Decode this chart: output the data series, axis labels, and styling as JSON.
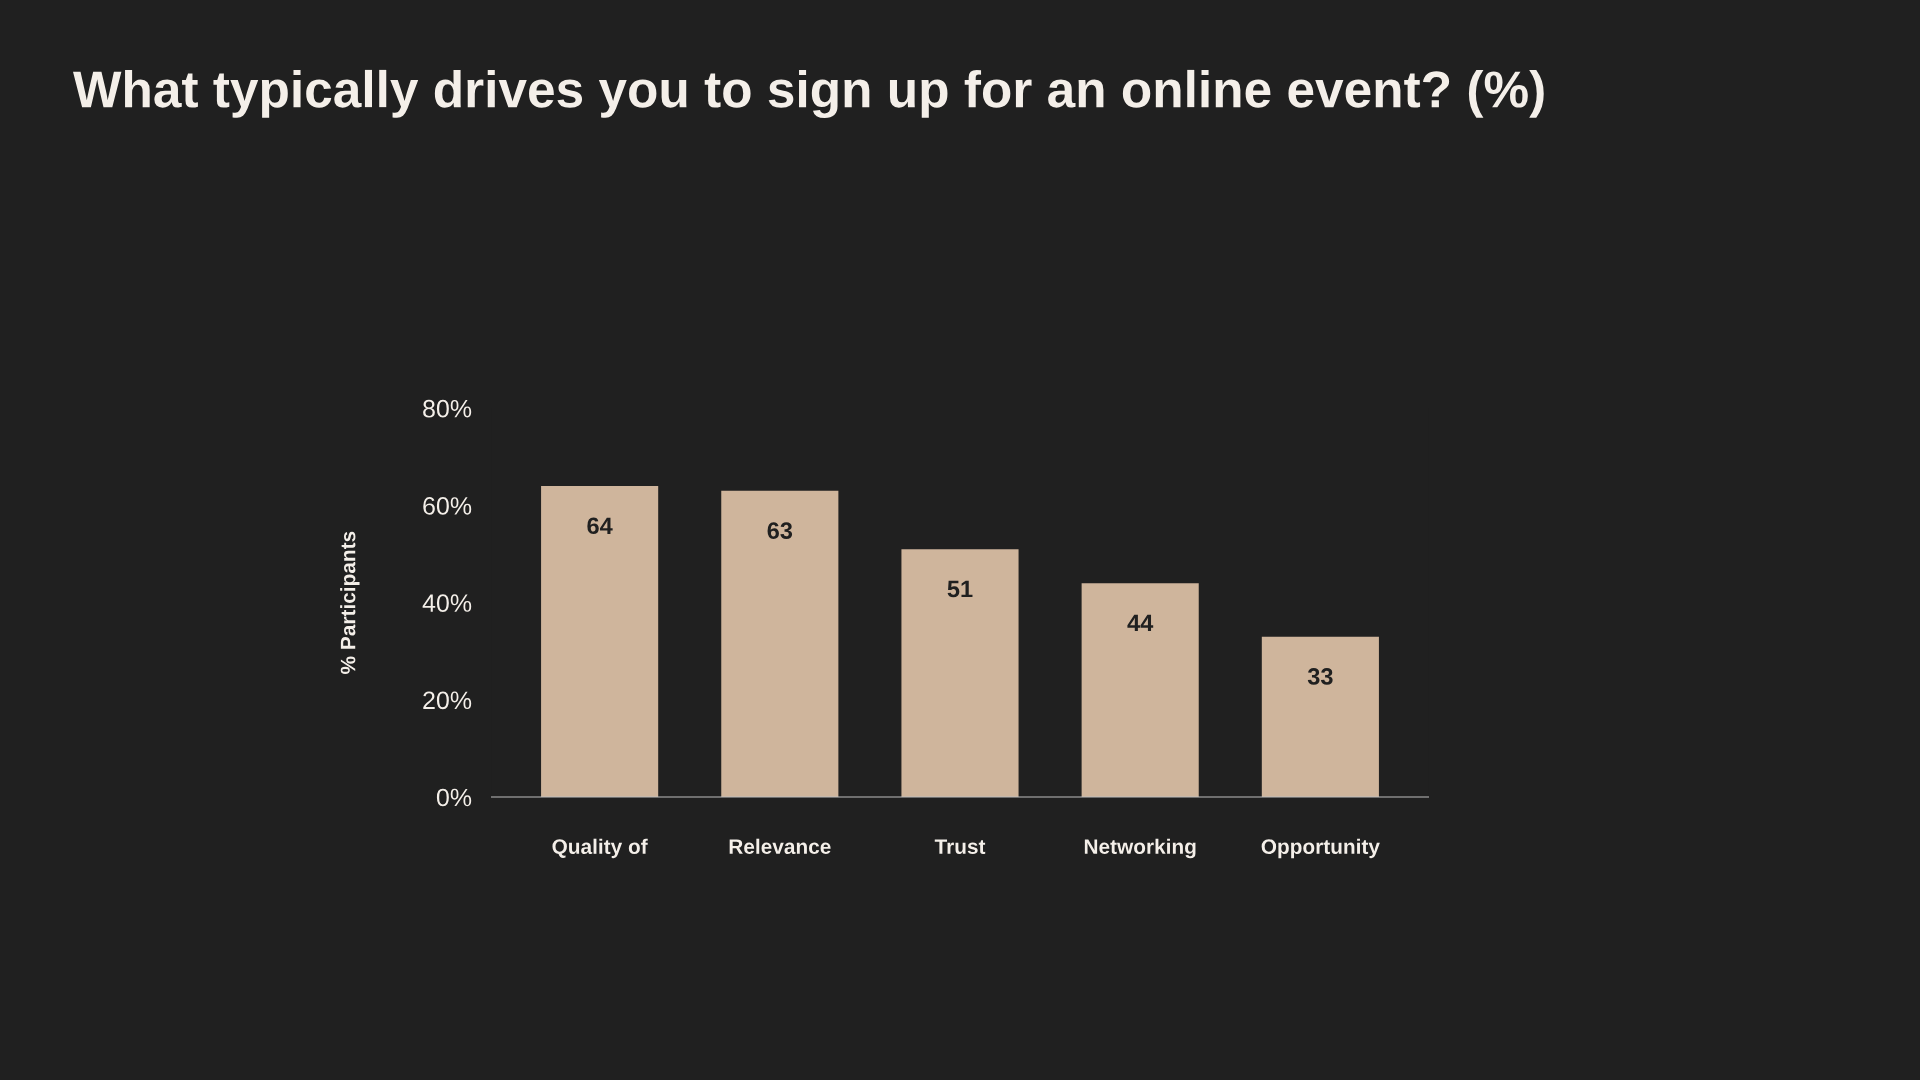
{
  "chart_data": {
    "type": "bar",
    "title": "What typically drives you to sign up for an online event? (%)",
    "ylabel": "% Participants",
    "categories": [
      "Quality of",
      "Relevance",
      "Trust",
      "Networking",
      "Opportunity"
    ],
    "values": [
      64,
      63,
      51,
      44,
      33
    ],
    "color": "#cfb59c",
    "data_labels": true,
    "ylim": [
      0,
      80
    ],
    "yticks": [
      {
        "value": 0,
        "label": "0%"
      },
      {
        "value": 20,
        "label": "20%"
      },
      {
        "value": 40,
        "label": "40%"
      },
      {
        "value": 60,
        "label": "60%"
      },
      {
        "value": 80,
        "label": "80%"
      }
    ],
    "grid": false,
    "legend": false
  }
}
